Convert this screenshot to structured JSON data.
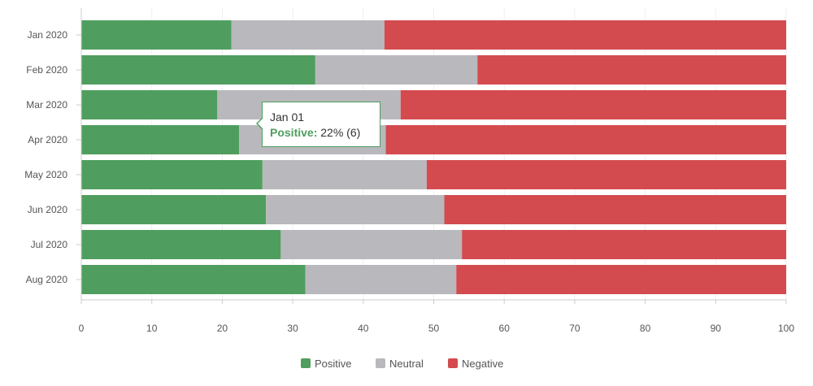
{
  "chart_data": {
    "type": "bar",
    "orientation": "horizontal",
    "stacked": true,
    "categories": [
      "Jan 2020",
      "Feb 2020",
      "Mar 2020",
      "Apr 2020",
      "May 2020",
      "Jun 2020",
      "Jul 2020",
      "Aug 2020"
    ],
    "series": [
      {
        "name": "Positive",
        "color": "#4f9e5f",
        "values": [
          21.3,
          33.2,
          19.3,
          22.4,
          25.7,
          26.2,
          28.3,
          31.8
        ]
      },
      {
        "name": "Neutral",
        "color": "#b9b8bd",
        "values": [
          21.7,
          23.0,
          26.0,
          20.8,
          23.3,
          25.3,
          25.7,
          21.4
        ]
      },
      {
        "name": "Negative",
        "color": "#d34b4f",
        "values": [
          57.0,
          43.8,
          54.7,
          56.8,
          51.0,
          48.5,
          46.0,
          46.8
        ]
      }
    ],
    "xlim": [
      0,
      100
    ],
    "xticks": [
      0,
      10,
      20,
      30,
      40,
      50,
      60,
      70,
      80,
      90,
      100
    ],
    "xlabel": "",
    "ylabel": "",
    "grid": true,
    "legend_position": "bottom-center"
  },
  "tooltip": {
    "title": "Jan 01",
    "series_label": "Positive:",
    "value_text": "22% (6)"
  }
}
